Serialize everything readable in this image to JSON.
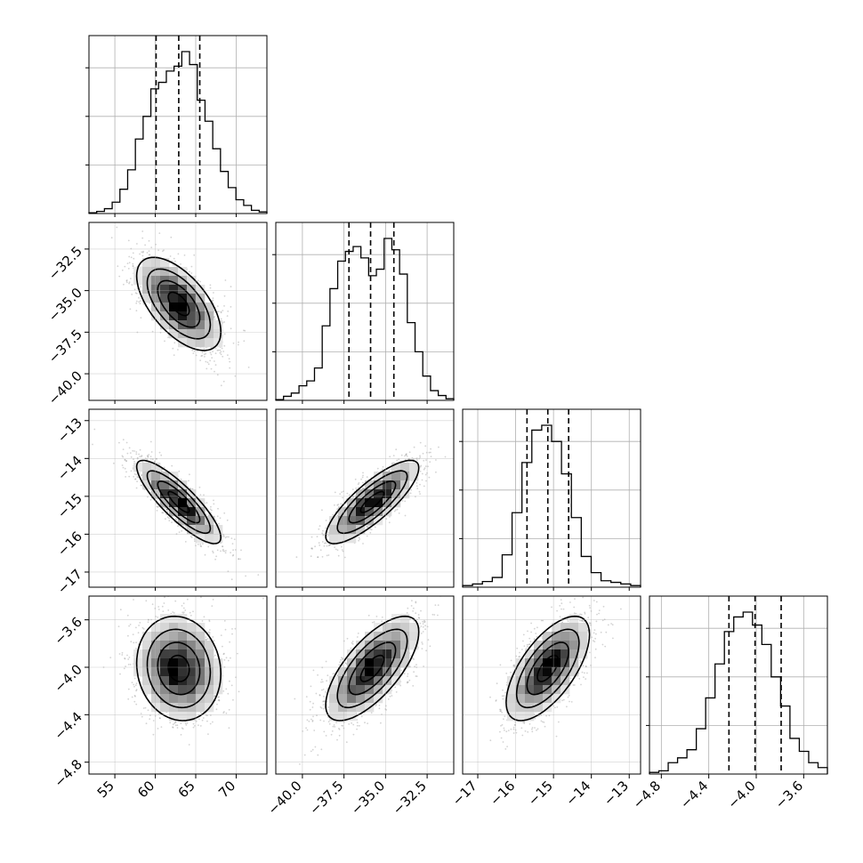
{
  "chart_data": {
    "type": "corner",
    "n_params": 4,
    "params": [
      {
        "range": [
          51.8,
          73.8
        ],
        "ticks": [
          55,
          60,
          65,
          70
        ],
        "tick_labels": [
          "55",
          "60",
          "65",
          "70"
        ],
        "quantiles": [
          60.1,
          62.9,
          65.5
        ],
        "hist": [
          0.005,
          0.013,
          0.03,
          0.07,
          0.15,
          0.27,
          0.46,
          0.6,
          0.77,
          0.81,
          0.88,
          0.91,
          1.0,
          0.92,
          0.7,
          0.57,
          0.4,
          0.26,
          0.16,
          0.085,
          0.05,
          0.02,
          0.01
        ]
      },
      {
        "range": [
          -41.6,
          -30.9
        ],
        "ticks": [
          -40.0,
          -37.5,
          -35.0,
          -32.5
        ],
        "tick_labels": [
          "−40.0",
          "−37.5",
          "−35.0",
          "−32.5"
        ],
        "quantiles": [
          -37.2,
          -35.9,
          -34.5
        ],
        "hist": [
          0.005,
          0.025,
          0.045,
          0.09,
          0.12,
          0.2,
          0.46,
          0.69,
          0.86,
          0.92,
          0.95,
          0.88,
          0.77,
          0.81,
          1.0,
          0.93,
          0.78,
          0.48,
          0.3,
          0.15,
          0.06,
          0.03,
          0.01
        ]
      },
      {
        "range": [
          -17.4,
          -12.7
        ],
        "ticks": [
          -17,
          -16,
          -15,
          -14,
          -13
        ],
        "tick_labels": [
          "−17",
          "−16",
          "−15",
          "−14",
          "−13"
        ],
        "quantiles": [
          -15.7,
          -15.15,
          -14.6
        ],
        "hist": [
          0.01,
          0.02,
          0.035,
          0.06,
          0.2,
          0.46,
          0.77,
          0.97,
          1.0,
          0.9,
          0.7,
          0.43,
          0.19,
          0.09,
          0.04,
          0.03,
          0.02,
          0.01
        ]
      },
      {
        "range": [
          -4.9,
          -3.4
        ],
        "ticks": [
          -4.8,
          -4.4,
          -4.0,
          -3.6
        ],
        "tick_labels": [
          "−4.8",
          "−4.4",
          "−4.0",
          "−3.6"
        ],
        "quantiles": [
          -4.23,
          -4.01,
          -3.79
        ],
        "hist": [
          0.01,
          0.02,
          0.07,
          0.1,
          0.15,
          0.28,
          0.47,
          0.68,
          0.88,
          0.97,
          1.0,
          0.92,
          0.8,
          0.6,
          0.42,
          0.22,
          0.14,
          0.07,
          0.04
        ]
      }
    ],
    "pairs": [
      {
        "row": 1,
        "col": 0,
        "mean": [
          62.9,
          -35.8
        ],
        "sd": [
          2.6,
          1.4
        ],
        "rho": -0.6
      },
      {
        "row": 2,
        "col": 0,
        "mean": [
          62.9,
          -15.15
        ],
        "sd": [
          2.6,
          0.55
        ],
        "rho": -0.85
      },
      {
        "row": 2,
        "col": 1,
        "mean": [
          -35.8,
          -15.15
        ],
        "sd": [
          1.4,
          0.55
        ],
        "rho": 0.82
      },
      {
        "row": 3,
        "col": 0,
        "mean": [
          62.9,
          -4.01
        ],
        "sd": [
          2.6,
          0.22
        ],
        "rho": -0.1
      },
      {
        "row": 3,
        "col": 1,
        "mean": [
          -35.8,
          -4.01
        ],
        "sd": [
          1.4,
          0.22
        ],
        "rho": 0.7
      },
      {
        "row": 3,
        "col": 2,
        "mean": [
          -15.15,
          -4.01
        ],
        "sd": [
          0.55,
          0.22
        ],
        "rho": 0.65
      }
    ],
    "contour_levels_sigma": [
      0.5,
      1.0,
      1.5,
      2.0
    ],
    "grid": true,
    "colors": {
      "line": "#000000",
      "points": "#808080",
      "grid": "#b0b0b0"
    }
  }
}
